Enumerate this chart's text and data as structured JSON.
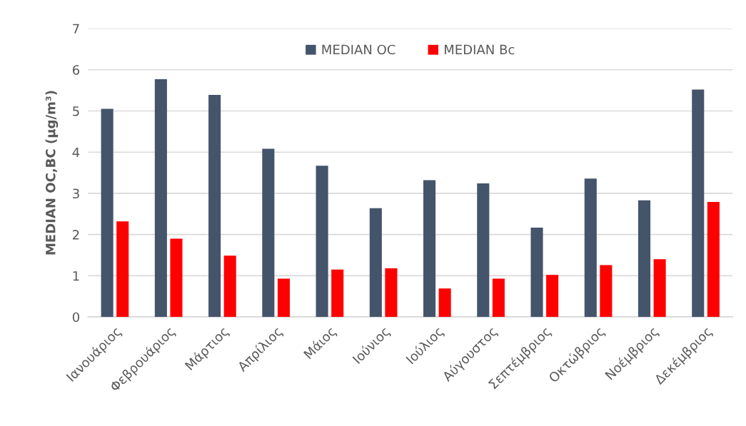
{
  "chart_data": {
    "type": "bar",
    "ylabel": "MEDIAN OC,BC (μg/m³)",
    "categories": [
      "Ιανουάριος",
      "Φεβρουάριος",
      "Μάρτιος",
      "Απρίλιος",
      "Μάιος",
      "Ιούνιος",
      "Ιούλιος",
      "Αύγουστος",
      "Σεπτέμβριος",
      "Οκτώβριος",
      "Νοέμβριος",
      "Δεκέμβριος"
    ],
    "series": [
      {
        "name": "MEDIAN OC",
        "color": "#44546a",
        "values": [
          5.05,
          5.77,
          5.39,
          4.08,
          3.67,
          2.64,
          3.32,
          3.24,
          2.17,
          3.36,
          2.83,
          5.52
        ]
      },
      {
        "name": "MEDIAN Bc",
        "color": "#ff0000",
        "values": [
          2.32,
          1.9,
          1.49,
          0.93,
          1.15,
          1.18,
          0.69,
          0.93,
          1.02,
          1.26,
          1.4,
          2.79
        ]
      }
    ],
    "ylim": [
      0,
      7
    ],
    "yticks": [
      0,
      1,
      2,
      3,
      4,
      5,
      6,
      7
    ],
    "grid": "y",
    "legend": "top"
  }
}
